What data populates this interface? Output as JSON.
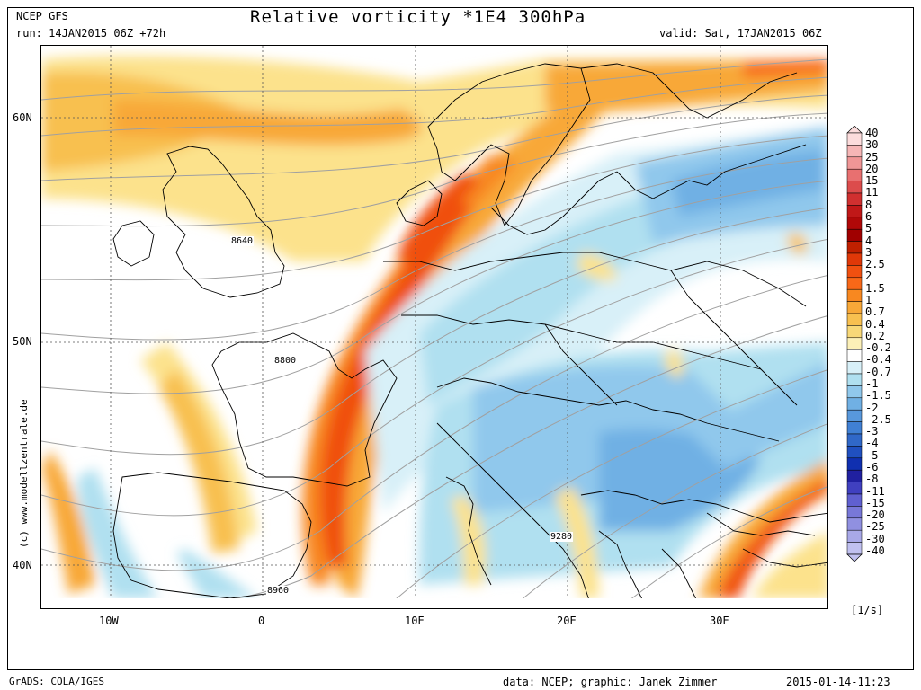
{
  "header": {
    "model": "NCEP GFS",
    "run": "run: 14JAN2015 06Z +72h",
    "title": "Relative vorticity *1E4 300hPa",
    "valid": "valid: Sat, 17JAN2015 06Z"
  },
  "map": {
    "lat_labels": [
      "60N",
      "50N",
      "40N"
    ],
    "lon_labels": [
      "10W",
      "0",
      "10E",
      "20E",
      "30E"
    ],
    "isohypse_labels": [
      "8640",
      "8800",
      "9280",
      "8960"
    ],
    "watermark": "(c) www.modellzentrale.de"
  },
  "colorbar": {
    "labels": [
      "40",
      "30",
      "25",
      "20",
      "15",
      "11",
      "8",
      "6",
      "5",
      "4",
      "3",
      "2.5",
      "2",
      "1.5",
      "1",
      "0.7",
      "0.4",
      "0.2",
      "-0.2",
      "-0.4",
      "-0.7",
      "-1",
      "-1.5",
      "-2",
      "-2.5",
      "-3",
      "-4",
      "-5",
      "-6",
      "-8",
      "-11",
      "-15",
      "-20",
      "-25",
      "-30",
      "-40"
    ],
    "colors": [
      "#fcdcdc",
      "#f6b6b6",
      "#f09696",
      "#e87070",
      "#dc4c4c",
      "#d03030",
      "#c01818",
      "#b00808",
      "#a00000",
      "#c02000",
      "#e03808",
      "#f05010",
      "#f86818",
      "#f88820",
      "#f8a838",
      "#f8c050",
      "#f8d878",
      "#fcf0b8",
      "#ffffff",
      "#d8f0f8",
      "#b0e0f0",
      "#90c8ec",
      "#70b0e4",
      "#5898dc",
      "#4080d4",
      "#3068c8",
      "#2050c0",
      "#1030b0",
      "#2020a0",
      "#4040c0",
      "#6060d0",
      "#7878d8",
      "#9090e0",
      "#a8a8e8",
      "#c0c0f0"
    ],
    "unit": "[1/s]"
  },
  "footer": {
    "left": "GrADS: COLA/IGES",
    "middle": "data: NCEP; graphic: Janek Zimmer",
    "right": "2015-01-14-11:23"
  }
}
